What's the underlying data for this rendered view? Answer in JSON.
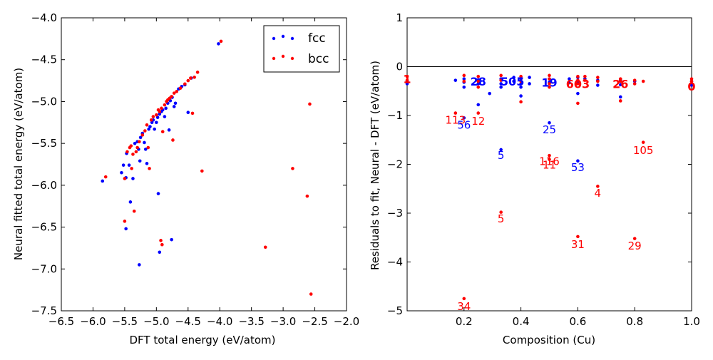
{
  "chart_data": [
    {
      "type": "scatter",
      "xlabel": "DFT total energy (eV/atom)",
      "ylabel": "Neural fitted total energy (eV/atom)",
      "xlim": [
        -6.5,
        -2.0
      ],
      "ylim": [
        -7.5,
        -4.0
      ],
      "xticks": [
        -6.5,
        -6.0,
        -5.5,
        -5.0,
        -4.5,
        -4.0,
        -3.5,
        -3.0,
        -2.5,
        -2.0
      ],
      "yticks": [
        -7.5,
        -7.0,
        -6.5,
        -6.0,
        -5.5,
        -5.0,
        -4.5,
        -4.0
      ],
      "xtick_labels": [
        "−6.5",
        "−6.0",
        "−5.5",
        "−5.0",
        "−4.5",
        "−4.0",
        "−3.5",
        "−3.0",
        "−2.5",
        "−2.0"
      ],
      "ytick_labels": [
        "−7.5",
        "−7.0",
        "−6.5",
        "−6.0",
        "−5.5",
        "−5.0",
        "−4.5",
        "−4.0"
      ],
      "legend": {
        "placement": "top-right",
        "entries": [
          {
            "name": "fcc",
            "color": "#0000ff"
          },
          {
            "name": "bcc",
            "color": "#ff0000"
          }
        ]
      },
      "series": [
        {
          "name": "fcc",
          "color": "#0000ff",
          "points": [
            [
              -5.85,
              -5.95
            ],
            [
              -5.55,
              -5.85
            ],
            [
              -5.52,
              -5.76
            ],
            [
              -5.48,
              -5.91
            ],
            [
              -5.47,
              -5.62
            ],
            [
              -5.43,
              -5.76
            ],
            [
              -5.41,
              -6.2
            ],
            [
              -5.37,
              -5.92
            ],
            [
              -5.34,
              -5.5
            ],
            [
              -5.3,
              -5.48
            ],
            [
              -5.28,
              -5.57
            ],
            [
              -5.26,
              -5.71
            ],
            [
              -5.25,
              -5.43
            ],
            [
              -5.22,
              -5.38
            ],
            [
              -5.19,
              -5.49
            ],
            [
              -5.17,
              -5.57
            ],
            [
              -5.15,
              -5.74
            ],
            [
              -5.12,
              -5.33
            ],
            [
              -5.1,
              -5.3
            ],
            [
              -5.07,
              -5.25
            ],
            [
              -5.05,
              -5.22
            ],
            [
              -5.03,
              -5.33
            ],
            [
              -5.0,
              -5.25
            ],
            [
              -4.98,
              -5.19
            ],
            [
              -4.95,
              -5.15
            ],
            [
              -4.92,
              -5.12
            ],
            [
              -4.9,
              -5.1
            ],
            [
              -4.87,
              -5.18
            ],
            [
              -4.85,
              -5.08
            ],
            [
              -4.82,
              -5.02
            ],
            [
              -4.8,
              -5.34
            ],
            [
              -4.78,
              -4.99
            ],
            [
              -4.75,
              -4.95
            ],
            [
              -4.72,
              -5.06
            ],
            [
              -4.7,
              -5.02
            ],
            [
              -4.65,
              -4.85
            ],
            [
              -4.6,
              -4.82
            ],
            [
              -4.55,
              -4.8
            ],
            [
              -4.5,
              -5.13
            ],
            [
              -4.45,
              -4.72
            ],
            [
              -4.02,
              -4.31
            ],
            [
              -5.48,
              -6.52
            ],
            [
              -5.27,
              -6.95
            ],
            [
              -4.97,
              -6.1
            ],
            [
              -4.95,
              -6.8
            ],
            [
              -4.76,
              -6.65
            ]
          ]
        },
        {
          "name": "bcc",
          "color": "#ff0000",
          "points": [
            [
              -5.8,
              -5.9
            ],
            [
              -5.5,
              -5.92
            ],
            [
              -5.46,
              -5.6
            ],
            [
              -5.42,
              -5.55
            ],
            [
              -5.4,
              -5.53
            ],
            [
              -5.39,
              -5.8
            ],
            [
              -5.37,
              -5.63
            ],
            [
              -5.35,
              -6.31
            ],
            [
              -5.32,
              -5.6
            ],
            [
              -5.3,
              -5.55
            ],
            [
              -5.27,
              -5.48
            ],
            [
              -5.22,
              -5.4
            ],
            [
              -5.18,
              -5.35
            ],
            [
              -5.15,
              -5.28
            ],
            [
              -5.13,
              -5.55
            ],
            [
              -5.11,
              -5.8
            ],
            [
              -5.08,
              -5.22
            ],
            [
              -5.05,
              -5.18
            ],
            [
              -5.0,
              -5.16
            ],
            [
              -4.97,
              -5.1
            ],
            [
              -4.95,
              -5.12
            ],
            [
              -4.92,
              -5.08
            ],
            [
              -4.9,
              -5.36
            ],
            [
              -4.87,
              -5.04
            ],
            [
              -4.84,
              -5.0
            ],
            [
              -4.82,
              -4.98
            ],
            [
              -4.79,
              -4.96
            ],
            [
              -4.76,
              -4.94
            ],
            [
              -4.74,
              -5.46
            ],
            [
              -4.72,
              -4.9
            ],
            [
              -4.68,
              -4.88
            ],
            [
              -4.62,
              -4.84
            ],
            [
              -4.55,
              -4.79
            ],
            [
              -4.5,
              -4.75
            ],
            [
              -4.46,
              -4.72
            ],
            [
              -4.43,
              -5.14
            ],
            [
              -4.4,
              -4.71
            ],
            [
              -4.35,
              -4.65
            ],
            [
              -4.28,
              -5.83
            ],
            [
              -3.98,
              -4.28
            ],
            [
              -3.28,
              -6.74
            ],
            [
              -2.85,
              -5.8
            ],
            [
              -2.62,
              -6.13
            ],
            [
              -2.58,
              -5.03
            ],
            [
              -2.56,
              -7.3
            ],
            [
              -5.5,
              -6.43
            ],
            [
              -4.93,
              -6.66
            ],
            [
              -4.91,
              -6.71
            ]
          ]
        }
      ]
    },
    {
      "type": "scatter",
      "xlabel": "Composition (Cu)",
      "ylabel": "Residuals to fit, Neural - DFT (eV/atom)",
      "xlim": [
        0.0,
        1.0
      ],
      "ylim": [
        -5,
        1
      ],
      "xticks": [
        0.2,
        0.4,
        0.6,
        0.8,
        1.0
      ],
      "yticks": [
        -5,
        -4,
        -3,
        -2,
        -1,
        0,
        1
      ],
      "xtick_labels": [
        "0.2",
        "0.4",
        "0.6",
        "0.8",
        "1.0"
      ],
      "ytick_labels": [
        "−5",
        "−4",
        "−3",
        "−2",
        "−1",
        "0",
        "1"
      ],
      "hline": 0,
      "series": [
        {
          "color": "#0000ff",
          "points": [
            [
              0.0,
              -0.3
            ],
            [
              0.0,
              -0.35
            ],
            [
              0.17,
              -0.28
            ],
            [
              0.2,
              -0.25
            ],
            [
              0.2,
              -0.32
            ],
            [
              0.2,
              -0.42
            ],
            [
              0.2,
              -1.05
            ],
            [
              0.25,
              -0.27
            ],
            [
              0.25,
              -0.35
            ],
            [
              0.25,
              -0.78
            ],
            [
              0.29,
              -0.55
            ],
            [
              0.33,
              -0.25
            ],
            [
              0.33,
              -0.35
            ],
            [
              0.33,
              -0.42
            ],
            [
              0.33,
              -1.7
            ],
            [
              0.375,
              -0.22
            ],
            [
              0.375,
              -0.3
            ],
            [
              0.4,
              -0.25
            ],
            [
              0.4,
              -0.35
            ],
            [
              0.4,
              -0.42
            ],
            [
              0.4,
              -0.6
            ],
            [
              0.43,
              -0.22
            ],
            [
              0.43,
              -0.35
            ],
            [
              0.5,
              -0.25
            ],
            [
              0.5,
              -0.32
            ],
            [
              0.5,
              -1.15
            ],
            [
              0.57,
              -0.25
            ],
            [
              0.57,
              -0.33
            ],
            [
              0.6,
              -0.22
            ],
            [
              0.6,
              -0.3
            ],
            [
              0.6,
              -0.55
            ],
            [
              0.6,
              -1.93
            ],
            [
              0.625,
              -0.25
            ],
            [
              0.67,
              -0.28
            ],
            [
              0.67,
              -0.38
            ],
            [
              0.75,
              -0.28
            ],
            [
              0.75,
              -0.37
            ],
            [
              0.75,
              -0.62
            ],
            [
              0.8,
              -0.3
            ],
            [
              1.0,
              -0.3
            ],
            [
              1.0,
              -0.38
            ]
          ]
        },
        {
          "color": "#ff0000",
          "points": [
            [
              0.0,
              -0.2
            ],
            [
              0.0,
              -0.28
            ],
            [
              0.17,
              -0.95
            ],
            [
              0.2,
              -0.18
            ],
            [
              0.2,
              -0.3
            ],
            [
              0.2,
              -4.75
            ],
            [
              0.25,
              -0.2
            ],
            [
              0.25,
              -0.3
            ],
            [
              0.25,
              -0.42
            ],
            [
              0.25,
              -0.95
            ],
            [
              0.33,
              -0.18
            ],
            [
              0.33,
              -0.28
            ],
            [
              0.33,
              -2.98
            ],
            [
              0.4,
              -0.2
            ],
            [
              0.4,
              -0.3
            ],
            [
              0.4,
              -0.72
            ],
            [
              0.5,
              -0.18
            ],
            [
              0.5,
              -0.25
            ],
            [
              0.5,
              -0.35
            ],
            [
              0.5,
              -0.42
            ],
            [
              0.5,
              -1.82
            ],
            [
              0.5,
              -1.9
            ],
            [
              0.6,
              -0.2
            ],
            [
              0.6,
              -0.28
            ],
            [
              0.6,
              -0.35
            ],
            [
              0.6,
              -0.75
            ],
            [
              0.6,
              -3.48
            ],
            [
              0.625,
              -0.2
            ],
            [
              0.625,
              -0.28
            ],
            [
              0.67,
              -0.22
            ],
            [
              0.67,
              -0.3
            ],
            [
              0.67,
              -2.45
            ],
            [
              0.75,
              -0.25
            ],
            [
              0.75,
              -0.3
            ],
            [
              0.75,
              -0.7
            ],
            [
              0.8,
              -0.28
            ],
            [
              0.8,
              -0.35
            ],
            [
              0.8,
              -3.52
            ],
            [
              0.83,
              -0.3
            ],
            [
              0.83,
              -1.55
            ],
            [
              1.0,
              -0.25
            ],
            [
              1.0,
              -0.3
            ]
          ]
        }
      ],
      "annotations": [
        {
          "text": "1",
          "x": 0.0,
          "y": -0.25,
          "color": "#ff0000",
          "bold": true
        },
        {
          "text": "113",
          "x": 0.17,
          "y": -1.08,
          "color": "#ff0000",
          "bold": false
        },
        {
          "text": "56",
          "x": 0.2,
          "y": -1.18,
          "color": "#0000ff",
          "bold": false
        },
        {
          "text": "12",
          "x": 0.25,
          "y": -1.1,
          "color": "#ff0000",
          "bold": false
        },
        {
          "text": "28",
          "x": 0.25,
          "y": -0.3,
          "color": "#0000ff",
          "bold": true
        },
        {
          "text": "34",
          "x": 0.2,
          "y": -4.9,
          "color": "#ff0000",
          "bold": false
        },
        {
          "text": "505",
          "x": 0.37,
          "y": -0.3,
          "color": "#0000ff",
          "bold": true
        },
        {
          "text": "5",
          "x": 0.33,
          "y": -1.8,
          "color": "#0000ff",
          "bold": false
        },
        {
          "text": "5",
          "x": 0.33,
          "y": -3.1,
          "color": "#ff0000",
          "bold": false
        },
        {
          "text": "19",
          "x": 0.5,
          "y": -0.32,
          "color": "#0000ff",
          "bold": true
        },
        {
          "text": "25",
          "x": 0.5,
          "y": -1.28,
          "color": "#0000ff",
          "bold": false
        },
        {
          "text": "116",
          "x": 0.5,
          "y": -1.93,
          "color": "#ff0000",
          "bold": false
        },
        {
          "text": "11",
          "x": 0.5,
          "y": -2.0,
          "color": "#ff0000",
          "bold": false
        },
        {
          "text": "603",
          "x": 0.6,
          "y": -0.35,
          "color": "#ff0000",
          "bold": true
        },
        {
          "text": "53",
          "x": 0.6,
          "y": -2.05,
          "color": "#0000ff",
          "bold": false
        },
        {
          "text": "31",
          "x": 0.6,
          "y": -3.63,
          "color": "#ff0000",
          "bold": false
        },
        {
          "text": "4",
          "x": 0.67,
          "y": -2.58,
          "color": "#ff0000",
          "bold": false
        },
        {
          "text": "26",
          "x": 0.75,
          "y": -0.35,
          "color": "#ff0000",
          "bold": true
        },
        {
          "text": "105",
          "x": 0.83,
          "y": -1.7,
          "color": "#ff0000",
          "bold": false
        },
        {
          "text": "29",
          "x": 0.8,
          "y": -3.66,
          "color": "#ff0000",
          "bold": false
        },
        {
          "text": "0",
          "x": 1.0,
          "y": -0.4,
          "color": "#ff0000",
          "bold": true
        }
      ]
    }
  ]
}
